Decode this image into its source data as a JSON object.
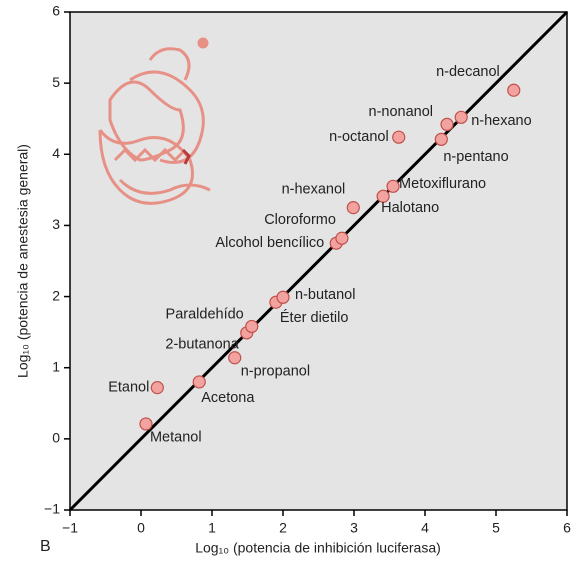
{
  "chart_data": {
    "type": "scatter",
    "x_label": "Log₁₀ (potencia de inhibición luciferasa)",
    "y_label": "Log₁₀ (potencia de anestesia general)",
    "panel_label": "B",
    "xlim": [
      -1,
      6
    ],
    "ylim": [
      -1,
      6
    ],
    "xticks": [
      {
        "value": -1,
        "label": "−1"
      },
      0,
      1,
      2,
      3,
      4,
      5,
      6
    ],
    "yticks": [
      {
        "value": -1,
        "label": "−1"
      },
      0,
      1,
      2,
      3,
      4,
      5,
      6
    ],
    "color": "#f2a3a0",
    "points": [
      {
        "name": "Metanol",
        "x": 0.07,
        "y": 0.21
      },
      {
        "name": "Etanol",
        "x": 0.23,
        "y": 0.72
      },
      {
        "name": "Acetona",
        "x": 0.82,
        "y": 0.8
      },
      {
        "name": "n-propanol",
        "x": 1.32,
        "y": 1.14
      },
      {
        "name": "2-butanona",
        "x": 1.49,
        "y": 1.49
      },
      {
        "name": "Paraldehído",
        "x": 1.56,
        "y": 1.58
      },
      {
        "name": "Éter dietilo",
        "x": 1.9,
        "y": 1.92
      },
      {
        "name": "n-butanol",
        "x": 2.0,
        "y": 1.99
      },
      {
        "name": "Alcohol bencílico",
        "x": 2.75,
        "y": 2.75
      },
      {
        "name": "Cloroformo",
        "x": 2.83,
        "y": 2.82
      },
      {
        "name": "n-hexanol",
        "x": 2.99,
        "y": 3.25
      },
      {
        "name": "Halotano",
        "x": 3.41,
        "y": 3.41
      },
      {
        "name": "Metoxiflurano",
        "x": 3.55,
        "y": 3.55
      },
      {
        "name": "n-octanol",
        "x": 3.63,
        "y": 4.24
      },
      {
        "name": "n-pentano",
        "x": 4.23,
        "y": 4.21
      },
      {
        "name": "n-nonanol",
        "x": 4.31,
        "y": 4.42
      },
      {
        "name": "n-hexano",
        "x": 4.51,
        "y": 4.52
      },
      {
        "name": "n-decanol",
        "x": 5.25,
        "y": 4.9
      }
    ]
  }
}
